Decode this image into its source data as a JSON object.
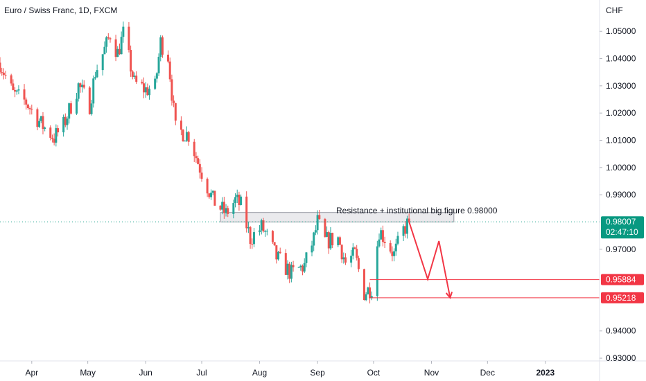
{
  "chart_data": {
    "type": "candlestick",
    "title": "Euro / Swiss Franc, 1D, FXCM",
    "currency": "CHF",
    "ylim": [
      0.929,
      1.0615
    ],
    "y_ticks": [
      1.05,
      1.04,
      1.03,
      1.02,
      1.01,
      1.0,
      0.99,
      0.97,
      0.94,
      0.93
    ],
    "y_tick_labels": [
      "1.05000",
      "1.04000",
      "1.03000",
      "1.02000",
      "1.01000",
      "1.00000",
      "0.99000",
      "0.97000",
      "0.94000",
      "0.93000"
    ],
    "x_labels": [
      {
        "label": "Apr",
        "date": "2022-04-01"
      },
      {
        "label": "May",
        "date": "2022-05-01"
      },
      {
        "label": "Jun",
        "date": "2022-06-01"
      },
      {
        "label": "Jul",
        "date": "2022-07-01"
      },
      {
        "label": "Aug",
        "date": "2022-08-01"
      },
      {
        "label": "Sep",
        "date": "2022-09-01"
      },
      {
        "label": "Oct",
        "date": "2022-10-01"
      },
      {
        "label": "Nov",
        "date": "2022-11-01"
      },
      {
        "label": "Dec",
        "date": "2022-12-01"
      },
      {
        "label": "2023",
        "date": "2023-01-01"
      }
    ],
    "x_range": [
      "2022-03-15",
      "2023-01-30"
    ],
    "colors": {
      "up": "#26a69a",
      "down": "#ef5350",
      "projection": "#f23645",
      "current": "#089981"
    },
    "anchors": [
      [
        "2022-03-15",
        1.0385
      ],
      [
        "2022-03-22",
        1.027
      ],
      [
        "2022-03-29",
        1.024
      ],
      [
        "2022-04-06",
        1.016
      ],
      [
        "2022-04-13",
        1.011
      ],
      [
        "2022-04-18",
        1.0155
      ],
      [
        "2022-04-26",
        1.03
      ],
      [
        "2022-05-02",
        1.023
      ],
      [
        "2022-05-05",
        1.035
      ],
      [
        "2022-05-11",
        1.045
      ],
      [
        "2022-05-13",
        1.049
      ],
      [
        "2022-05-17",
        1.042
      ],
      [
        "2022-05-20",
        1.049
      ],
      [
        "2022-05-26",
        1.031
      ],
      [
        "2022-06-01",
        1.0285
      ],
      [
        "2022-06-06",
        1.0295
      ],
      [
        "2022-06-09",
        1.046
      ],
      [
        "2022-06-13",
        1.041
      ],
      [
        "2022-06-17",
        1.014
      ],
      [
        "2022-06-24",
        1.012
      ],
      [
        "2022-06-30",
        1.0
      ],
      [
        "2022-07-07",
        0.988
      ],
      [
        "2022-07-14",
        0.983
      ],
      [
        "2022-07-19",
        0.988
      ],
      [
        "2022-07-22",
        0.986
      ],
      [
        "2022-07-27",
        0.974
      ],
      [
        "2022-08-02",
        0.978
      ],
      [
        "2022-08-04",
        0.976
      ],
      [
        "2022-08-10",
        0.967
      ],
      [
        "2022-08-18",
        0.961
      ],
      [
        "2022-08-25",
        0.964
      ],
      [
        "2022-08-30",
        0.974
      ],
      [
        "2022-09-01",
        0.98
      ],
      [
        "2022-09-05",
        0.973
      ],
      [
        "2022-09-12",
        0.974
      ],
      [
        "2022-09-16",
        0.965
      ],
      [
        "2022-09-21",
        0.968
      ],
      [
        "2022-09-26",
        0.954
      ],
      [
        "2022-09-30",
        0.956
      ],
      [
        "2022-10-04",
        0.977
      ],
      [
        "2022-10-07",
        0.974
      ],
      [
        "2022-10-12",
        0.968
      ],
      [
        "2022-10-17",
        0.977
      ],
      [
        "2022-10-20",
        0.98007
      ]
    ],
    "last_price": 0.98007,
    "last_price_label": "0.98007",
    "countdown_label": "02:47:10",
    "resistance_zone": {
      "from": "2022-07-11",
      "to": "2022-11-13",
      "low": 0.98,
      "high": 0.9835
    },
    "annotation_text": "Resistance + institutional big figure 0.98000",
    "target_lines": [
      {
        "value": 0.95884,
        "label": "0.95884",
        "from": "2022-09-29"
      },
      {
        "value": 0.95218,
        "label": "0.95218",
        "from": "2022-09-29"
      }
    ],
    "projection_path": [
      [
        "2022-10-20",
        0.98007
      ],
      [
        "2022-10-30",
        0.959
      ],
      [
        "2022-11-05",
        0.973
      ],
      [
        "2022-11-11",
        0.95218
      ]
    ]
  }
}
